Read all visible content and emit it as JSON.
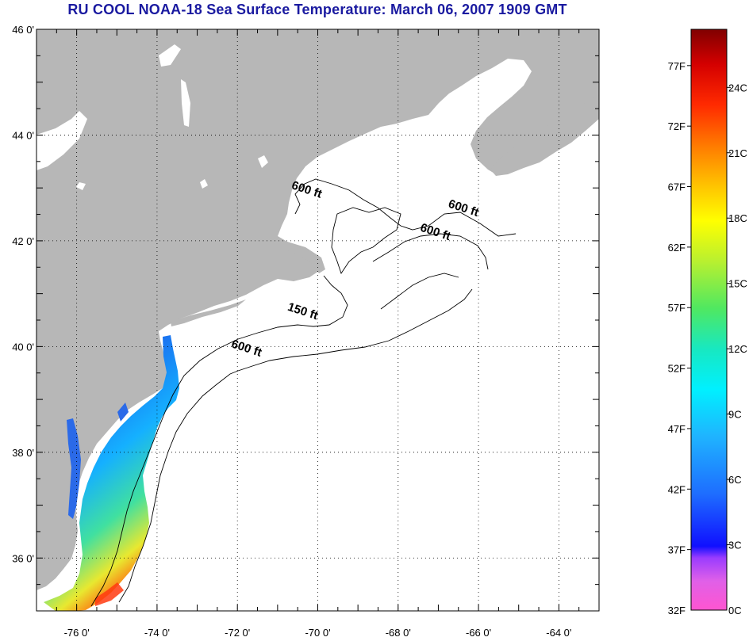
{
  "title": "RU COOL  NOAA-18  Sea Surface Temperature:  March 06, 2007 1909 GMT",
  "map": {
    "lon_range": [
      -77,
      -63
    ],
    "lat_range": [
      35,
      46
    ],
    "lat_ticks": [
      {
        "value": 46,
        "label": "46 0'"
      },
      {
        "value": 44,
        "label": "44 0'"
      },
      {
        "value": 42,
        "label": "42 0'"
      },
      {
        "value": 40,
        "label": "40 0'"
      },
      {
        "value": 38,
        "label": "38 0'"
      },
      {
        "value": 36,
        "label": "36 0'"
      }
    ],
    "lon_ticks": [
      {
        "value": -76,
        "label": "-76 0'"
      },
      {
        "value": -74,
        "label": "-74 0'"
      },
      {
        "value": -72,
        "label": "-72 0'"
      },
      {
        "value": -70,
        "label": "-70 0'"
      },
      {
        "value": -68,
        "label": "-68 0'"
      },
      {
        "value": -66,
        "label": "-66 0'"
      },
      {
        "value": -64,
        "label": "-64 0'"
      }
    ],
    "grid": "dotted",
    "contour_labels": [
      {
        "text": "600 ft",
        "lon": -70.3,
        "lat": 42.9
      },
      {
        "text": "600 ft",
        "lon": -66.4,
        "lat": 42.55
      },
      {
        "text": "600 ft",
        "lon": -67.1,
        "lat": 42.1
      },
      {
        "text": "150 ft",
        "lon": -70.4,
        "lat": 40.6
      },
      {
        "text": "600 ft",
        "lon": -71.8,
        "lat": 39.9
      }
    ],
    "colors": {
      "land": "#b7b7b7",
      "water": "#ffffff",
      "lakes": "#ffffff",
      "contour": "#000000"
    }
  },
  "colorbar": {
    "fahrenheit_labels": [
      "77F",
      "72F",
      "67F",
      "62F",
      "57F",
      "52F",
      "47F",
      "42F",
      "37F",
      "32F"
    ],
    "celsius_labels": [
      "24C",
      "21C",
      "18C",
      "15C",
      "12C",
      "9C",
      "6C",
      "3C",
      "0C"
    ],
    "range_f": [
      32,
      80
    ]
  }
}
